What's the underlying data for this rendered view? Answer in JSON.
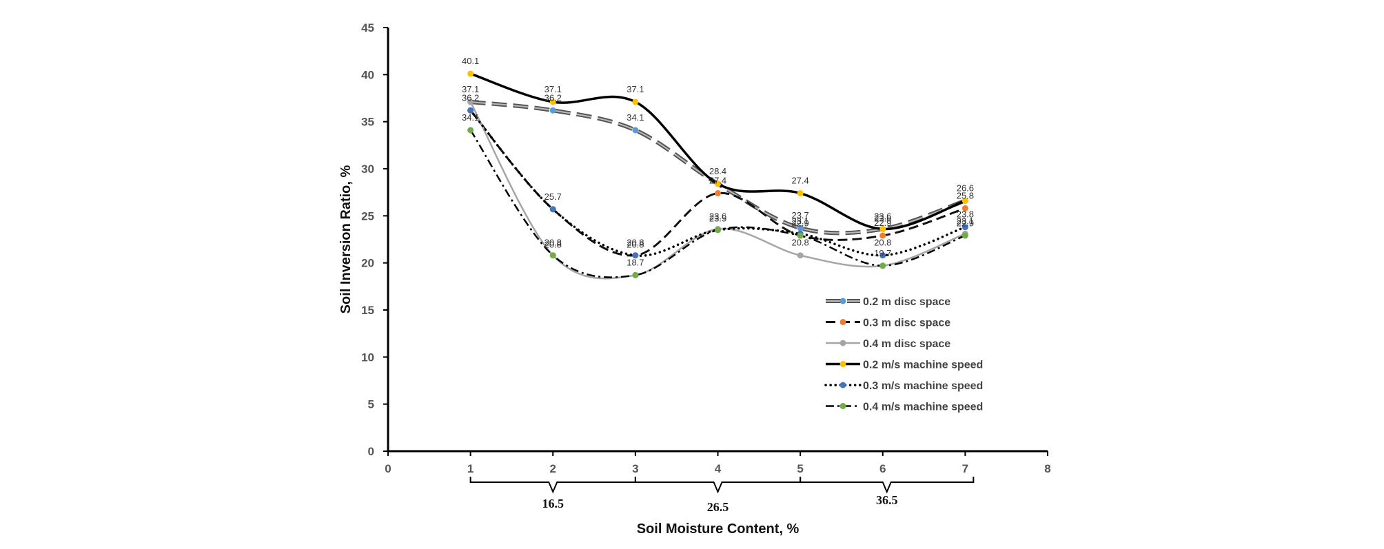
{
  "chart_data": {
    "type": "line",
    "title": "",
    "xlabel": "Soil Moisture Content, %",
    "ylabel": "Soil Inversion Ratio, %",
    "xlim": [
      0,
      8
    ],
    "ylim": [
      0,
      45
    ],
    "x_ticks": [
      "0",
      "1",
      "2",
      "3",
      "4",
      "5",
      "6",
      "7",
      "8"
    ],
    "y_ticks": [
      "0",
      "5",
      "10",
      "15",
      "20",
      "25",
      "30",
      "35",
      "40",
      "45"
    ],
    "grid": false,
    "legend_position": "right",
    "x": [
      1,
      2,
      3,
      4,
      5,
      6,
      7
    ],
    "moisture_groups": [
      {
        "label": "16.5",
        "from": 1,
        "to": 3
      },
      {
        "label": "26.5",
        "from": 3,
        "to": 5
      },
      {
        "label": "36.5",
        "from": 5,
        "to": 7.1
      }
    ],
    "series": [
      {
        "name": "0.2 m disc space",
        "values": [
          37.1,
          36.2,
          34.1,
          28.4,
          23.7,
          23.6,
          26.6
        ],
        "color": "#5B9BD5",
        "line_color": "#555555",
        "style": "double-dash"
      },
      {
        "name": "0.3 m disc space",
        "values": [
          36.2,
          25.7,
          20.8,
          27.4,
          22.9,
          22.9,
          25.8
        ],
        "color": "#ED7D31",
        "line_color": "#111111",
        "style": "dash"
      },
      {
        "name": "0.4 m  disc space",
        "values": [
          37.1,
          20.8,
          18.7,
          23.6,
          20.8,
          19.7,
          23.1
        ],
        "color": "#A5A5A5",
        "line_color": "#A5A5A5",
        "style": "solid"
      },
      {
        "name": "0.2 m/s  machine speed",
        "values": [
          40.1,
          37.1,
          37.1,
          28.4,
          27.4,
          23.6,
          26.6
        ],
        "color": "#FFC000",
        "line_color": "#000000",
        "style": "solid-thick"
      },
      {
        "name": "0.3 m/s  machine speed",
        "values": [
          36.2,
          25.7,
          20.8,
          23.5,
          23.1,
          20.8,
          23.8
        ],
        "color": "#4472C4",
        "line_color": "#000000",
        "style": "dot"
      },
      {
        "name": "0.4 m/s machine speed",
        "values": [
          34.1,
          20.8,
          18.7,
          23.5,
          22.9,
          19.7,
          22.9
        ],
        "color": "#70AD47",
        "line_color": "#000000",
        "style": "dash-dot"
      }
    ],
    "data_labels": [
      {
        "x": 1,
        "y": 40.1,
        "text": "40.1"
      },
      {
        "x": 1,
        "y": 37.1,
        "text": "37.1"
      },
      {
        "x": 1,
        "y": 36.2,
        "text": "36.2"
      },
      {
        "x": 1,
        "y": 34.1,
        "text": "34.1"
      },
      {
        "x": 2,
        "y": 37.1,
        "text": "37.1"
      },
      {
        "x": 2,
        "y": 36.2,
        "text": "36.2"
      },
      {
        "x": 2,
        "y": 25.7,
        "text": "25.7"
      },
      {
        "x": 2,
        "y": 20.8,
        "text": "20.8"
      },
      {
        "x": 2,
        "y": 20.8,
        "text": "20.8"
      },
      {
        "x": 3,
        "y": 37.1,
        "text": "37.1"
      },
      {
        "x": 3,
        "y": 34.1,
        "text": "34.1"
      },
      {
        "x": 3,
        "y": 20.8,
        "text": "20.8"
      },
      {
        "x": 3,
        "y": 20.8,
        "text": "20.8"
      },
      {
        "x": 3,
        "y": 18.7,
        "text": "18.7"
      },
      {
        "x": 4,
        "y": 28.4,
        "text": "28.4"
      },
      {
        "x": 4,
        "y": 27.4,
        "text": "27.4"
      },
      {
        "x": 4,
        "y": 23.6,
        "text": "23.6"
      },
      {
        "x": 4,
        "y": 23.5,
        "text": "23.5"
      },
      {
        "x": 5,
        "y": 27.4,
        "text": "27.4"
      },
      {
        "x": 5,
        "y": 23.7,
        "text": "23.7"
      },
      {
        "x": 5,
        "y": 23.1,
        "text": "23.1"
      },
      {
        "x": 5,
        "y": 22.9,
        "text": "22.9"
      },
      {
        "x": 5,
        "y": 20.8,
        "text": "20.8"
      },
      {
        "x": 6,
        "y": 23.6,
        "text": "23.6"
      },
      {
        "x": 6,
        "y": 23.6,
        "text": "23.6"
      },
      {
        "x": 6,
        "y": 22.9,
        "text": "22.9"
      },
      {
        "x": 6,
        "y": 20.8,
        "text": "20.8"
      },
      {
        "x": 6,
        "y": 19.7,
        "text": "19.7"
      },
      {
        "x": 7,
        "y": 26.6,
        "text": "26.6"
      },
      {
        "x": 7,
        "y": 25.8,
        "text": "25.8"
      },
      {
        "x": 7,
        "y": 23.8,
        "text": "23.8"
      },
      {
        "x": 7,
        "y": 23.1,
        "text": "23.1"
      },
      {
        "x": 7,
        "y": 22.9,
        "text": "22.9"
      }
    ]
  }
}
